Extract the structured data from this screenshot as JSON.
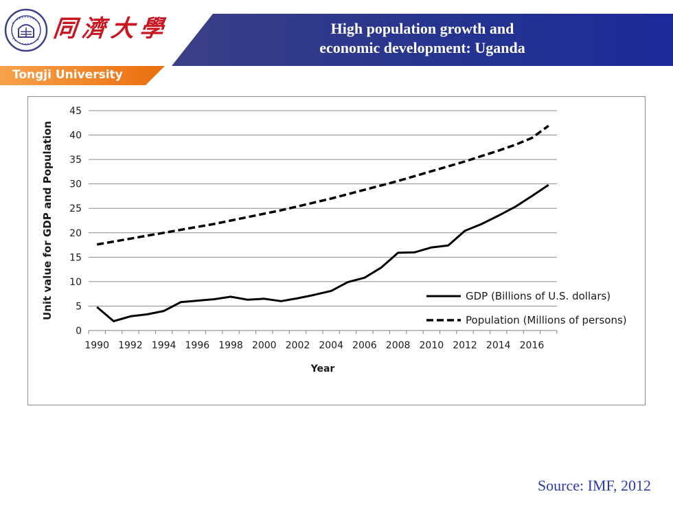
{
  "header": {
    "title": "High population growth and\neconomic development: Uganda",
    "school_name_cn": "同濟大學",
    "university_label": "Tongji University",
    "seal_text": "TONGJI UNIVERSITY",
    "seal_year": "1907"
  },
  "source": "Source: IMF, 2012",
  "colors": {
    "banner": "#26348f",
    "orange": "#ee7d1f",
    "logo_red": "#c8151f",
    "source_text": "#2a3aa8"
  },
  "chart_data": {
    "type": "line",
    "xlabel": "Year",
    "ylabel": "Unit value for GDP and Population",
    "ylim": [
      0,
      45
    ],
    "yticks": [
      0,
      5,
      10,
      15,
      20,
      25,
      30,
      35,
      40,
      45
    ],
    "xlim": [
      1990,
      2017
    ],
    "xticklabels": [
      1990,
      1992,
      1994,
      1996,
      1998,
      2000,
      2002,
      2004,
      2006,
      2008,
      2010,
      2012,
      2014,
      2016
    ],
    "grid": "horizontal",
    "legend_position": "right",
    "x": [
      1990,
      1991,
      1992,
      1993,
      1994,
      1995,
      1996,
      1997,
      1998,
      1999,
      2000,
      2001,
      2002,
      2003,
      2004,
      2005,
      2006,
      2007,
      2008,
      2009,
      2010,
      2011,
      2012,
      2013,
      2014,
      2015,
      2016,
      2017
    ],
    "series": [
      {
        "name": "GDP (Billions of U.S. dollars)",
        "style": "solid",
        "values": [
          4.8,
          1.9,
          2.9,
          3.3,
          4.0,
          5.8,
          6.1,
          6.4,
          6.9,
          6.3,
          6.5,
          6.0,
          6.6,
          7.3,
          8.1,
          9.9,
          10.8,
          12.9,
          15.9,
          16.0,
          17.0,
          17.4,
          20.4,
          21.8,
          23.5,
          25.3,
          27.5,
          29.8
        ]
      },
      {
        "name": "Population (Millions of persons)",
        "style": "dashed",
        "values": [
          17.6,
          18.2,
          18.8,
          19.4,
          20.0,
          20.6,
          21.2,
          21.8,
          22.5,
          23.2,
          23.9,
          24.6,
          25.4,
          26.2,
          27.0,
          27.9,
          28.8,
          29.7,
          30.6,
          31.6,
          32.6,
          33.6,
          34.6,
          35.7,
          36.8,
          38.0,
          39.4,
          41.9
        ]
      }
    ]
  }
}
